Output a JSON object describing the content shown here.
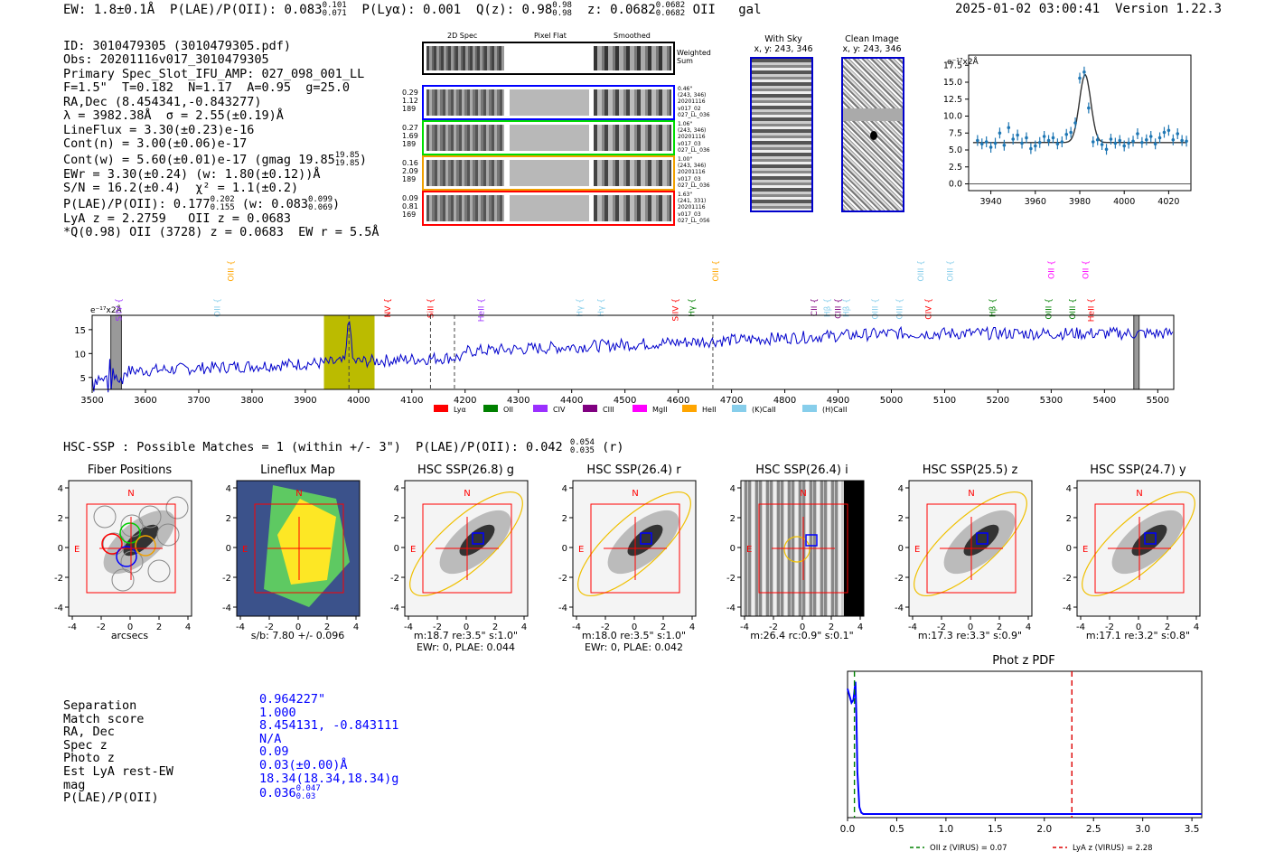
{
  "header": {
    "ew": "EW: 1.8±0.1Å",
    "plae_lbl": "P(LAE)/P(OII): 0.083",
    "plae_hi": "0.101",
    "plae_lo": "0.071",
    "plya": "P(Lyα): 0.001",
    "q_lbl": "Q(z): 0.98",
    "q_hi": "0.98",
    "q_lo": "0.98",
    "z_lbl": "z: 0.0682",
    "z_hi": "0.0682",
    "z_lo": "0.0682",
    "line": "OII",
    "type": "gal",
    "timestamp": "2025-01-02 03:00:41",
    "version": "Version 1.22.3"
  },
  "info": {
    "l1": "ID: 3010479305 (3010479305.pdf)",
    "l2": "Obs: 20201116v017_3010479305",
    "l3": "Primary Spec_Slot_IFU_AMP: 027_098_001_LL",
    "l4": "F=1.5\"  T=0.182  N=1.17  A=0.95  g=25.0",
    "l5": "RA,Dec (8.454341,-0.843277)",
    "l6": "λ = 3982.38Å  σ = 2.55(±0.19)Å",
    "l7": "LineFlux = 3.30(±0.23)e-16",
    "l8": "Cont(n) = 3.00(±0.06)e-17",
    "l9": "Cont(w) = 5.60(±0.01)e-17 (gmag 19.85",
    "l9_hi": "19.85",
    "l9_lo": "19.85",
    "l9_end": ")",
    "l10": "EWr = 3.30(±0.24) (w: 1.80(±0.12))Å",
    "l11": "S/N = 16.2(±0.4)  χ² = 1.1(±0.2)",
    "l12": "P(LAE)/P(OII): 0.177",
    "l12_hi": "0.202",
    "l12_lo": "0.155",
    "l12_mid": "(w: 0.083",
    "l12_hi2": "0.099",
    "l12_lo2": "0.069",
    "l12_end": ")",
    "l13": "LyA z = 2.2759   OII z = 0.0683",
    "l14": "*Q(0.98) OII (3728) z = 0.0683  EW r = 5.5Å"
  },
  "cutouts": {
    "col_2d": "2D Spec",
    "col_flat": "Pixel Flat",
    "col_smooth": "Smoothed",
    "weighted": "Weighted\nSum",
    "rows": [
      {
        "left": [
          "0.29",
          "1.12",
          "189"
        ],
        "right": [
          "0.46\"",
          "(243, 346)",
          "20201116",
          "v017_02",
          "027_LL_036"
        ],
        "color": "#0000ff"
      },
      {
        "left": [
          "0.27",
          "1.69",
          "189"
        ],
        "right": [
          "1.06\"",
          "(243, 346)",
          "20201116",
          "v017_03",
          "027_LL_036"
        ],
        "color": "#00dd00"
      },
      {
        "left": [
          "0.16",
          "2.09",
          "189"
        ],
        "right": [
          "1.00\"",
          "(243, 346)",
          "20201116",
          "v017_03",
          "027_LL_036"
        ],
        "color": "#f0a000"
      },
      {
        "left": [
          "0.09",
          "0.81",
          "169"
        ],
        "right": [
          "1.63\"",
          "(241, 331)",
          "20201116",
          "v017_03",
          "027_LL_056"
        ],
        "color": "#ff0000"
      }
    ],
    "with_sky_title": "With Sky",
    "with_sky_xy": "x, y: 243, 346",
    "clean_title": "Clean Image",
    "clean_xy": "x, y: 243, 346"
  },
  "spec_line_names": [
    "SiIV",
    "OII",
    "OIII",
    "NV",
    "SiII",
    "HeII",
    "Hγ",
    "Hγ",
    "SiIV",
    "OIII",
    "Hγ",
    "CII",
    "Hβ",
    "CIII",
    "Hβ",
    "OIII",
    "OIII",
    "CIV",
    "Hβ",
    "OIII",
    "OIII",
    "HeII",
    "OII",
    "OIII",
    "OIII",
    "OII"
  ],
  "legend_lines": [
    "Lyα",
    "OII",
    "CIV",
    "CIII",
    "MgII",
    "HeII",
    "(K)CaII",
    "(H)CaII"
  ],
  "legend_colors": [
    "#ff0000",
    "#008000",
    "#9b30ff",
    "#800080",
    "#ff00ff",
    "#ffa500",
    "#87ceeb",
    "#87ceeb"
  ],
  "hsc": {
    "header": "HSC-SSP : Possible Matches = 1 (within +/- 3\")  P(LAE)/P(OII): 0.042",
    "header_hi": "0.054",
    "header_lo": "0.035",
    "header_end": "(r)",
    "panels": [
      {
        "title": "Fiber Positions",
        "sub1": "arcsecs",
        "sub2": ""
      },
      {
        "title": "Lineflux Map",
        "sub1": "s/b: 7.80 +/- 0.096",
        "sub2": ""
      },
      {
        "title": "HSC SSP(26.8) g",
        "sub1": "m:18.7  re:3.5\"  s:1.0\"",
        "sub2": "EWr: 0, PLAE: 0.044"
      },
      {
        "title": "HSC SSP(26.4) r",
        "sub1": "m:18.0  re:3.5\"  s:1.0\"",
        "sub2": "EWr: 0, PLAE: 0.042"
      },
      {
        "title": "HSC SSP(26.4) i",
        "sub1": "m:26.4  rc:0.9\"  s:0.1\"",
        "sub2": ""
      },
      {
        "title": "HSC SSP(25.5) z",
        "sub1": "m:17.3  re:3.3\"  s:0.9\"",
        "sub2": ""
      },
      {
        "title": "HSC SSP(24.7) y",
        "sub1": "m:17.1  re:3.2\"  s:0.8\"",
        "sub2": ""
      }
    ],
    "n_label": "N",
    "e_label": "E",
    "axis_ticks": [
      "-4",
      "-2",
      "0",
      "2",
      "4"
    ]
  },
  "match": {
    "labels": [
      "Separation",
      "Match score",
      "RA, Dec",
      "Spec z",
      "Photo z",
      "Est LyA rest-EW",
      "mag",
      "P(LAE)/P(OII)"
    ],
    "values": [
      "0.964227\"",
      "1.000",
      "8.454131, -0.843111",
      "N/A",
      "0.09",
      "0.03(±0.00)Å",
      "18.34(18.34,18.34)g",
      "0.036"
    ],
    "plae_hi": "0.047",
    "plae_lo": "0.03"
  },
  "chart_data": [
    {
      "type": "line",
      "title": "",
      "ylabel": "e⁻¹⁷x2Å",
      "xlim": [
        3930,
        4030
      ],
      "ylim": [
        -1,
        19
      ],
      "xticks": [
        3940,
        3960,
        3980,
        4000,
        4020
      ],
      "yticks": [
        0.0,
        2.5,
        5.0,
        7.5,
        10.0,
        12.5,
        15.0,
        17.5
      ],
      "series": [
        {
          "values_x": [
            3934,
            3936,
            3938,
            3940,
            3942,
            3944,
            3946,
            3948,
            3950,
            3952,
            3954,
            3956,
            3958,
            3960,
            3962,
            3964,
            3966,
            3968,
            3970,
            3972,
            3974,
            3976,
            3978,
            3980,
            3982,
            3984,
            3986,
            3988,
            3990,
            3992,
            3994,
            3996,
            3998,
            4000,
            4002,
            4004,
            4006,
            4008,
            4010,
            4012,
            4014,
            4016,
            4018,
            4020,
            4022,
            4024,
            4026,
            4028
          ],
          "values_y": [
            6.4,
            5.9,
            6.2,
            5.4,
            6.0,
            7.5,
            5.7,
            8.3,
            6.6,
            7.2,
            6.0,
            6.8,
            5.2,
            5.6,
            6.1,
            7.0,
            6.4,
            6.8,
            5.9,
            6.2,
            7.3,
            7.6,
            9.0,
            15.6,
            16.5,
            11.2,
            6.2,
            6.5,
            5.8,
            5.1,
            6.6,
            6.0,
            6.4,
            5.6,
            6.0,
            6.3,
            7.4,
            6.1,
            6.5,
            7.0,
            5.9,
            6.8,
            7.6,
            7.9,
            6.5,
            7.4,
            6.4,
            6.3
          ]
        }
      ],
      "fit_continuum": 6.1,
      "fit_peak": 16.1,
      "fit_center": 3982.4,
      "fit_sigma": 2.55
    },
    {
      "type": "line",
      "title": "",
      "ylabel": "e⁻¹⁷x2Å",
      "xlim": [
        3500,
        5530
      ],
      "ylim": [
        2.5,
        18
      ],
      "xticks": [
        3500,
        3600,
        3700,
        3800,
        3900,
        4000,
        4100,
        4200,
        4300,
        4400,
        4500,
        4600,
        4700,
        4800,
        4900,
        5000,
        5100,
        5200,
        5300,
        5400,
        5500
      ],
      "yticks": [
        5,
        10,
        15
      ],
      "highlight_range": [
        3935,
        4030
      ],
      "masked_ranges": [
        [
          3535,
          3555
        ],
        [
          5455,
          5465
        ]
      ],
      "dashed_lines": [
        3982,
        4135,
        4180,
        4665
      ],
      "series": [
        {
          "name": "",
          "x_start": 3500,
          "x_end": 5530
        }
      ]
    },
    {
      "type": "line",
      "title": "Phot z PDF",
      "xlim": [
        0.0,
        3.6
      ],
      "xticks": [
        0.0,
        0.5,
        1.0,
        1.5,
        2.0,
        2.5,
        3.0,
        3.5
      ],
      "series": [
        {
          "name": "",
          "values_x": [
            0.0,
            0.02,
            0.04,
            0.06,
            0.08,
            0.09,
            0.1,
            0.12,
            0.14,
            0.16,
            0.2,
            0.5,
            1.0,
            2.0,
            3.0,
            3.6
          ],
          "values_y": [
            0.9,
            0.85,
            0.8,
            0.82,
            0.95,
            0.7,
            0.3,
            0.05,
            0.01,
            0.0,
            0.0,
            0.0,
            0.0,
            0.0,
            0.0,
            0.0
          ]
        }
      ],
      "vlines": [
        {
          "x": 0.07,
          "label": "OII z (VIRUS) = 0.07",
          "color": "#008000"
        },
        {
          "x": 2.28,
          "label": "LyA z (VIRUS) = 2.28",
          "color": "#dd0000"
        }
      ]
    }
  ]
}
